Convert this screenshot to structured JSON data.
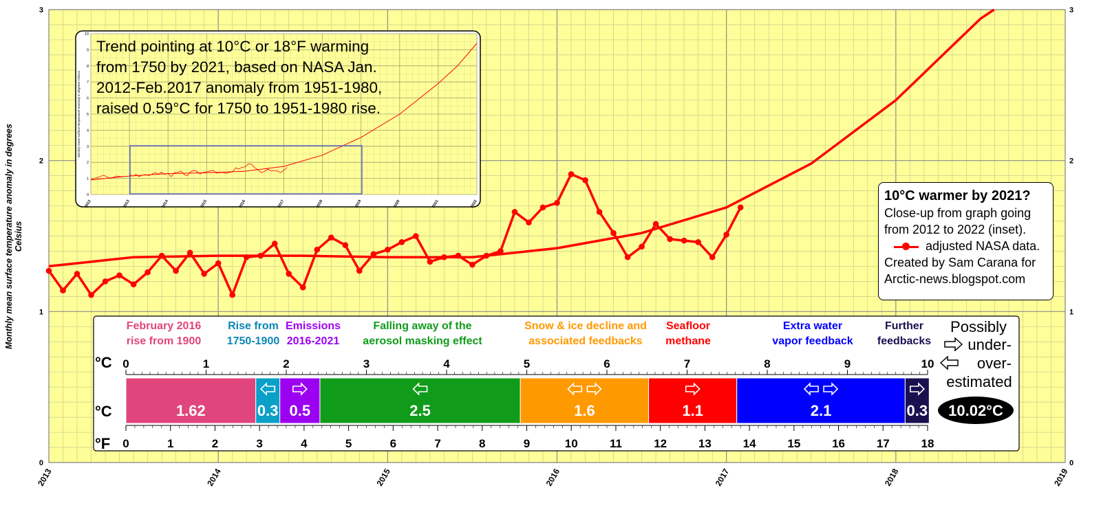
{
  "chart_data": {
    "type": "line",
    "ylabel": "Monthly mean surface temperature anomaly in degrees Celsius",
    "ylim": [
      0,
      3
    ],
    "xlim": [
      2013,
      2019
    ],
    "y_ticks": [
      "0",
      "1",
      "2",
      "3"
    ],
    "x_ticks": [
      "2013",
      "2014",
      "2015",
      "2016",
      "2017",
      "2018",
      "2019"
    ],
    "grid": true,
    "legend_placement": "right",
    "series": [
      {
        "name": "adjusted NASA data.",
        "color": "#ff0000",
        "x": [
          "2013-01",
          "2013-02",
          "2013-03",
          "2013-04",
          "2013-05",
          "2013-06",
          "2013-07",
          "2013-08",
          "2013-09",
          "2013-10",
          "2013-11",
          "2013-12",
          "2014-01",
          "2014-02",
          "2014-03",
          "2014-04",
          "2014-05",
          "2014-06",
          "2014-07",
          "2014-08",
          "2014-09",
          "2014-10",
          "2014-11",
          "2014-12",
          "2015-01",
          "2015-02",
          "2015-03",
          "2015-04",
          "2015-05",
          "2015-06",
          "2015-07",
          "2015-08",
          "2015-09",
          "2015-10",
          "2015-11",
          "2015-12",
          "2016-01",
          "2016-02",
          "2016-03",
          "2016-04",
          "2016-05",
          "2016-06",
          "2016-07",
          "2016-08",
          "2016-09",
          "2016-10",
          "2016-11",
          "2016-12",
          "2017-01",
          "2017-02"
        ],
        "values": [
          1.27,
          1.14,
          1.25,
          1.11,
          1.2,
          1.24,
          1.18,
          1.26,
          1.37,
          1.27,
          1.39,
          1.25,
          1.32,
          1.11,
          1.36,
          1.37,
          1.45,
          1.25,
          1.16,
          1.41,
          1.49,
          1.44,
          1.27,
          1.38,
          1.41,
          1.46,
          1.5,
          1.33,
          1.36,
          1.37,
          1.31,
          1.37,
          1.4,
          1.66,
          1.59,
          1.69,
          1.72,
          1.91,
          1.87,
          1.66,
          1.52,
          1.36,
          1.43,
          1.58,
          1.48,
          1.47,
          1.46,
          1.36,
          1.51,
          1.69
        ]
      },
      {
        "name": "trend",
        "color": "#ff0000",
        "x": [
          2013.0,
          2013.5,
          2014.0,
          2014.5,
          2015.0,
          2015.5,
          2016.0,
          2016.5,
          2017.0,
          2017.5,
          2018.0,
          2018.5,
          2018.58
        ],
        "values": [
          1.3,
          1.36,
          1.37,
          1.37,
          1.36,
          1.36,
          1.42,
          1.52,
          1.69,
          1.98,
          2.4,
          2.94,
          3.0
        ]
      }
    ],
    "inset": {
      "text": [
        "Trend pointing at 10°C or 18°F warming",
        "from 1750 by 2021, based on NASA Jan.",
        "2012-Feb.2017 anomaly from 1951-1980,",
        "raised 0.59°C for 1750 to 1951-1980 rise."
      ],
      "x_ticks": [
        "2012",
        "2013",
        "2014",
        "2015",
        "2016",
        "2017",
        "2018",
        "2019",
        "2020",
        "2021",
        "2022"
      ],
      "y_ticks": [
        "0",
        "1",
        "2",
        "3",
        "4",
        "5",
        "6",
        "7",
        "8",
        "9",
        "10"
      ],
      "ylabel": "Monthly mean surface temperature anomaly in degrees Celsius"
    },
    "legend": {
      "title": "10°C warmer by 2021?",
      "lines": [
        "Close-up from graph going",
        "from 2012 to 2022 (inset).",
        "adjusted NASA data.",
        "Created by Sam Carana for",
        "Arctic-news.blogspot.com"
      ]
    },
    "bar_scale": {
      "celsius_unit": "°C",
      "fahrenheit_unit": "°F",
      "c_ticks": [
        "0",
        "1",
        "2",
        "3",
        "4",
        "5",
        "6",
        "7",
        "8",
        "9",
        "10"
      ],
      "f_ticks": [
        "0",
        "1",
        "2",
        "3",
        "4",
        "5",
        "6",
        "7",
        "8",
        "9",
        "10",
        "11",
        "12",
        "13",
        "14",
        "15",
        "16",
        "17",
        "18"
      ],
      "segments": [
        {
          "label": [
            "February 2016",
            "rise from 1900"
          ],
          "value": 1.62,
          "display": "1.62",
          "color": "#e0457b",
          "label_color": "#e0457b",
          "arrows": ""
        },
        {
          "label": [
            "Rise from",
            "1750-1900"
          ],
          "value": 0.3,
          "display": "0.3",
          "color": "#0aa0c8",
          "label_color": "#0a87b5",
          "arrows": "left"
        },
        {
          "label": [
            "Emissions",
            "2016-2021"
          ],
          "value": 0.5,
          "display": "0.5",
          "color": "#9c00f0",
          "label_color": "#9c00f0",
          "arrows": "right"
        },
        {
          "label": [
            "Falling away of the",
            "aerosol masking effect"
          ],
          "value": 2.5,
          "display": "2.5",
          "color": "#109b1b",
          "label_color": "#109b1b",
          "arrows": "left"
        },
        {
          "label": [
            "Snow & ice decline and",
            "associated feedbacks"
          ],
          "value": 1.6,
          "display": "1.6",
          "color": "#ff9900",
          "label_color": "#ff9900",
          "arrows": "both"
        },
        {
          "label": [
            "Seafloor",
            "methane"
          ],
          "value": 1.1,
          "display": "1.1",
          "color": "#ff0000",
          "label_color": "#ff0000",
          "arrows": "right"
        },
        {
          "label": [
            "Extra water",
            "vapor feedback"
          ],
          "value": 2.1,
          "display": "2.1",
          "color": "#0000ff",
          "label_color": "#0000ff",
          "arrows": "both"
        },
        {
          "label": [
            "Further",
            "feedbacks"
          ],
          "value": 0.3,
          "display": "0.3",
          "color": "#1a1050",
          "label_color": "#1a1050",
          "arrows": "right"
        }
      ],
      "possibly": [
        "Possibly",
        "under-",
        "over-",
        "estimated"
      ],
      "total": "10.02°C"
    }
  }
}
